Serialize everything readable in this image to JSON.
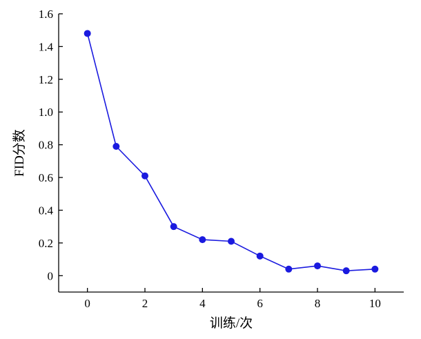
{
  "chart_data": {
    "type": "line",
    "title": "",
    "xlabel": "训练/次",
    "ylabel": "FID分数",
    "xlim": [
      -1,
      11
    ],
    "ylim": [
      -0.1,
      1.6
    ],
    "xticks": [
      0,
      2,
      4,
      6,
      8,
      10
    ],
    "xtick_labels": [
      "0",
      "2",
      "4",
      "6",
      "8",
      "10"
    ],
    "yticks": [
      0,
      0.2,
      0.4,
      0.6,
      0.8,
      1.0,
      1.2,
      1.4,
      1.6
    ],
    "ytick_labels": [
      "0",
      "0.2",
      "0.4",
      "0.6",
      "0.8",
      "1.0",
      "1.2",
      "1.4",
      "1.6"
    ],
    "grid": false,
    "legend": "none",
    "series": [
      {
        "color": "#1a1adf",
        "x": [
          0,
          1,
          2,
          3,
          4,
          5,
          6,
          7,
          8,
          9,
          10
        ],
        "values": [
          1.48,
          0.79,
          0.61,
          0.3,
          0.22,
          0.21,
          0.12,
          0.04,
          0.06,
          0.03,
          0.04
        ]
      }
    ]
  }
}
